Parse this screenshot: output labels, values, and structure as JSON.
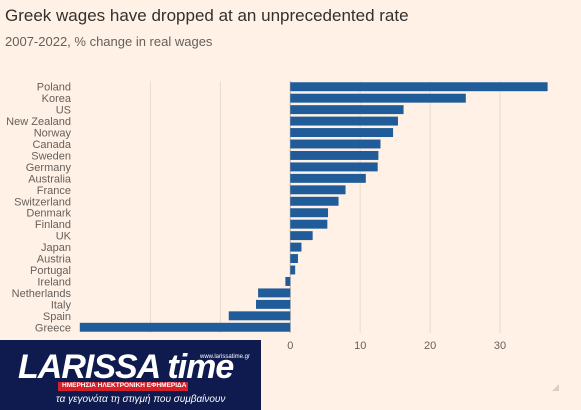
{
  "chart_data": {
    "type": "bar",
    "orientation": "horizontal",
    "title": "Greek wages have dropped at an unprecedented rate",
    "subtitle": "2007-2022, % change in real wages",
    "categories": [
      "Poland",
      "Korea",
      "US",
      "New Zealand",
      "Norway",
      "Canada",
      "Sweden",
      "Germany",
      "Australia",
      "France",
      "Switzerland",
      "Denmark",
      "Finland",
      "UK",
      "Japan",
      "Austria",
      "Portugal",
      "Ireland",
      "Netherlands",
      "Italy",
      "Spain",
      "Greece"
    ],
    "values": [
      36.8,
      25.1,
      16.2,
      15.4,
      14.7,
      12.9,
      12.6,
      12.5,
      10.8,
      7.9,
      6.9,
      5.4,
      5.3,
      3.2,
      1.6,
      1.1,
      0.7,
      -0.7,
      -4.6,
      -4.9,
      -8.8,
      -30.1
    ],
    "xlim": [
      -30.5,
      38
    ],
    "xticks": [
      0,
      10,
      20,
      30
    ],
    "bar_color": "#1f5c99",
    "grid": true
  },
  "logo": {
    "name": "LARISSA time",
    "url": "www.larissatime.gr",
    "strip": "ΗΜΕΡΗΣΙΑ ΗΛΕΚΤΡΟΝΙΚΗ ΕΦΗΜΕΡΙΔΑ",
    "tagline": "τα γεγονότα τη στιγμή που συμβαίνουν"
  }
}
